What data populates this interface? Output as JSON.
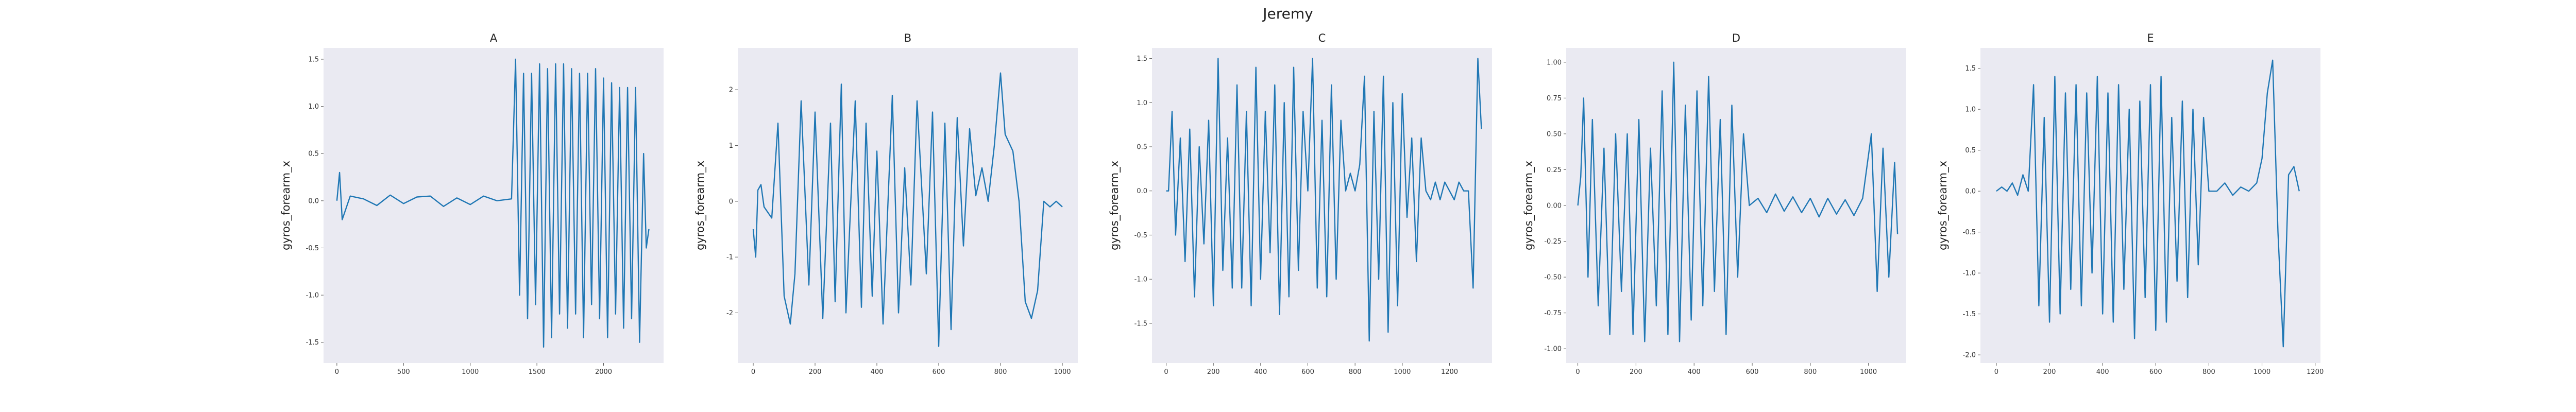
{
  "figure": {
    "title": "Jeremy"
  },
  "style": {
    "plot_background": "#eaeaf2",
    "line_color": "#1f77b4",
    "text_color": "#222222"
  },
  "chart_data": [
    {
      "type": "line",
      "title": "A",
      "xlabel": "",
      "ylabel": "gyros_forearm_x",
      "grid": false,
      "legend": "none",
      "xlim": [
        -100,
        2450
      ],
      "ylim": [
        -1.72,
        1.62
      ],
      "xticks": [
        0,
        500,
        1000,
        1500,
        2000
      ],
      "xtick_labels": [
        "0",
        "500",
        "1000",
        "1500",
        "2000"
      ],
      "yticks": [
        -1.5,
        -1.0,
        -0.5,
        0.0,
        0.5,
        1.0,
        1.5
      ],
      "ytick_labels": [
        "-1.5",
        "-1.0",
        "-0.5",
        "0.0",
        "0.5",
        "1.0",
        "1.5"
      ],
      "series": [
        {
          "x": [
            0,
            20,
            40,
            100,
            200,
            300,
            400,
            500,
            600,
            700,
            800,
            900,
            1000,
            1100,
            1200,
            1310,
            1340,
            1370,
            1400,
            1430,
            1460,
            1490,
            1520,
            1550,
            1580,
            1610,
            1640,
            1670,
            1700,
            1730,
            1760,
            1790,
            1820,
            1850,
            1880,
            1910,
            1940,
            1970,
            2000,
            2030,
            2060,
            2090,
            2120,
            2150,
            2180,
            2210,
            2240,
            2270,
            2300,
            2320,
            2340
          ],
          "y": [
            0.0,
            0.3,
            -0.2,
            0.05,
            0.02,
            -0.05,
            0.06,
            -0.03,
            0.04,
            0.05,
            -0.06,
            0.03,
            -0.04,
            0.05,
            0.0,
            0.02,
            1.5,
            -1.0,
            1.35,
            -1.25,
            1.35,
            -1.1,
            1.45,
            -1.55,
            1.4,
            -1.45,
            1.45,
            -1.2,
            1.45,
            -1.35,
            1.4,
            -1.2,
            1.35,
            -1.45,
            1.35,
            -1.1,
            1.4,
            -1.25,
            1.3,
            -1.45,
            1.25,
            -1.2,
            1.2,
            -1.35,
            1.2,
            -1.25,
            1.2,
            -1.5,
            0.5,
            -0.5,
            -0.3
          ]
        }
      ]
    },
    {
      "type": "line",
      "title": "B",
      "xlabel": "",
      "ylabel": "gyros_forearm_x",
      "grid": false,
      "legend": "none",
      "xlim": [
        -50,
        1050
      ],
      "ylim": [
        -2.9,
        2.75
      ],
      "xticks": [
        0,
        200,
        400,
        600,
        800,
        1000
      ],
      "xtick_labels": [
        "0",
        "200",
        "400",
        "600",
        "800",
        "1000"
      ],
      "yticks": [
        -2,
        -1,
        0,
        1,
        2
      ],
      "ytick_labels": [
        "-2",
        "-1",
        "0",
        "1",
        "2"
      ],
      "series": [
        {
          "x": [
            0,
            8,
            15,
            25,
            35,
            60,
            80,
            100,
            120,
            135,
            155,
            180,
            200,
            225,
            250,
            265,
            285,
            300,
            330,
            350,
            365,
            385,
            400,
            420,
            450,
            470,
            490,
            510,
            530,
            560,
            580,
            600,
            620,
            640,
            660,
            680,
            700,
            720,
            740,
            760,
            780,
            800,
            815,
            840,
            860,
            880,
            900,
            920,
            940,
            960,
            980,
            1000
          ],
          "y": [
            -0.5,
            -1.0,
            0.2,
            0.3,
            -0.1,
            -0.3,
            1.4,
            -1.7,
            -2.2,
            -1.3,
            1.8,
            -1.5,
            1.6,
            -2.1,
            1.4,
            -1.8,
            2.1,
            -2.0,
            1.8,
            -1.9,
            1.4,
            -1.7,
            0.9,
            -2.2,
            1.9,
            -2.0,
            0.6,
            -1.5,
            1.8,
            -1.3,
            1.6,
            -2.6,
            1.4,
            -2.3,
            1.5,
            -0.8,
            1.3,
            0.1,
            0.6,
            0.0,
            1.0,
            2.3,
            1.2,
            0.9,
            0.0,
            -1.8,
            -2.1,
            -1.6,
            0.0,
            -0.1,
            0.0,
            -0.1
          ]
        }
      ]
    },
    {
      "type": "line",
      "title": "C",
      "xlabel": "",
      "ylabel": "gyros_forearm_x",
      "grid": false,
      "legend": "none",
      "xlim": [
        -60,
        1380
      ],
      "ylim": [
        -1.95,
        1.62
      ],
      "xticks": [
        0,
        200,
        400,
        600,
        800,
        1000,
        1200
      ],
      "xtick_labels": [
        "0",
        "200",
        "400",
        "600",
        "800",
        "1000",
        "1200"
      ],
      "yticks": [
        -1.5,
        -1.0,
        -0.5,
        0.0,
        0.5,
        1.0,
        1.5
      ],
      "ytick_labels": [
        "-1.5",
        "-1.0",
        "-0.5",
        "0.0",
        "0.5",
        "1.0",
        "1.5"
      ],
      "series": [
        {
          "x": [
            0,
            10,
            25,
            40,
            60,
            80,
            100,
            120,
            140,
            160,
            180,
            200,
            220,
            240,
            260,
            280,
            300,
            320,
            340,
            360,
            380,
            400,
            420,
            440,
            460,
            480,
            500,
            520,
            540,
            560,
            580,
            600,
            620,
            640,
            660,
            680,
            700,
            720,
            740,
            760,
            780,
            800,
            820,
            840,
            860,
            880,
            900,
            920,
            940,
            960,
            980,
            1000,
            1020,
            1040,
            1060,
            1080,
            1100,
            1120,
            1140,
            1160,
            1180,
            1200,
            1220,
            1240,
            1260,
            1280,
            1300,
            1320,
            1335
          ],
          "y": [
            0.0,
            0.0,
            0.9,
            -0.5,
            0.6,
            -0.8,
            0.7,
            -1.2,
            0.5,
            -0.6,
            0.8,
            -1.3,
            1.5,
            -0.9,
            0.6,
            -1.1,
            1.2,
            -1.1,
            0.9,
            -1.3,
            1.4,
            -1.0,
            0.9,
            -0.7,
            1.2,
            -1.4,
            1.0,
            -1.2,
            1.4,
            -0.9,
            0.9,
            0.0,
            1.5,
            -1.1,
            0.8,
            -1.2,
            1.2,
            -1.0,
            0.8,
            0.0,
            0.2,
            0.0,
            0.3,
            1.3,
            -1.7,
            0.9,
            -1.0,
            1.3,
            -1.6,
            1.0,
            -1.3,
            1.1,
            -0.3,
            0.6,
            -0.8,
            0.6,
            0.0,
            -0.1,
            0.1,
            -0.1,
            0.1,
            0.0,
            -0.1,
            0.1,
            0.0,
            0.0,
            -1.1,
            1.5,
            0.7
          ]
        }
      ]
    },
    {
      "type": "line",
      "title": "D",
      "xlabel": "",
      "ylabel": "gyros_forearm_x",
      "grid": false,
      "legend": "none",
      "xlim": [
        -40,
        1130
      ],
      "ylim": [
        -1.1,
        1.1
      ],
      "xticks": [
        0,
        200,
        400,
        600,
        800,
        1000
      ],
      "xtick_labels": [
        "0",
        "200",
        "400",
        "600",
        "800",
        "1000"
      ],
      "yticks": [
        -1.0,
        -0.75,
        -0.5,
        -0.25,
        0.0,
        0.25,
        0.5,
        0.75,
        1.0
      ],
      "ytick_labels": [
        "-1.00",
        "-0.75",
        "-0.50",
        "-0.25",
        "0.00",
        "0.25",
        "0.50",
        "0.75",
        "1.00"
      ],
      "series": [
        {
          "x": [
            0,
            10,
            20,
            35,
            50,
            70,
            90,
            110,
            130,
            150,
            170,
            190,
            210,
            230,
            250,
            270,
            290,
            310,
            330,
            350,
            370,
            390,
            410,
            430,
            450,
            470,
            490,
            510,
            530,
            550,
            570,
            590,
            620,
            650,
            680,
            710,
            740,
            770,
            800,
            830,
            860,
            890,
            920,
            950,
            980,
            1010,
            1030,
            1050,
            1070,
            1090,
            1100
          ],
          "y": [
            0.0,
            0.2,
            0.75,
            -0.5,
            0.6,
            -0.7,
            0.4,
            -0.9,
            0.5,
            -0.6,
            0.5,
            -0.9,
            0.6,
            -0.95,
            0.4,
            -0.7,
            0.8,
            -0.9,
            1.0,
            -0.95,
            0.7,
            -0.8,
            0.8,
            -0.7,
            0.9,
            -0.6,
            0.6,
            -0.9,
            0.7,
            -0.5,
            0.5,
            0.0,
            0.05,
            -0.05,
            0.08,
            -0.04,
            0.06,
            -0.05,
            0.05,
            -0.08,
            0.05,
            -0.06,
            0.04,
            -0.07,
            0.05,
            0.5,
            -0.6,
            0.4,
            -0.5,
            0.3,
            -0.2
          ]
        }
      ]
    },
    {
      "type": "line",
      "title": "E",
      "xlabel": "",
      "ylabel": "gyros_forearm_x",
      "grid": false,
      "legend": "none",
      "xlim": [
        -60,
        1220
      ],
      "ylim": [
        -2.1,
        1.75
      ],
      "xticks": [
        0,
        200,
        400,
        600,
        800,
        1000,
        1200
      ],
      "xtick_labels": [
        "0",
        "200",
        "400",
        "600",
        "800",
        "1000",
        "1200"
      ],
      "yticks": [
        -2.0,
        -1.5,
        -1.0,
        -0.5,
        0.0,
        0.5,
        1.0,
        1.5
      ],
      "ytick_labels": [
        "-2.0",
        "-1.5",
        "-1.0",
        "-0.5",
        "0.0",
        "0.5",
        "1.0",
        "1.5"
      ],
      "series": [
        {
          "x": [
            0,
            20,
            40,
            60,
            80,
            100,
            120,
            140,
            160,
            180,
            200,
            220,
            240,
            260,
            280,
            300,
            320,
            340,
            360,
            380,
            400,
            420,
            440,
            460,
            480,
            500,
            520,
            540,
            560,
            580,
            600,
            620,
            640,
            660,
            680,
            700,
            720,
            740,
            760,
            780,
            800,
            830,
            860,
            890,
            920,
            950,
            980,
            1000,
            1020,
            1040,
            1060,
            1080,
            1100,
            1120,
            1140
          ],
          "y": [
            0.0,
            0.05,
            0.0,
            0.1,
            -0.05,
            0.2,
            0.0,
            1.3,
            -1.4,
            0.9,
            -1.6,
            1.4,
            -1.5,
            1.2,
            -1.2,
            1.3,
            -1.4,
            1.2,
            -1.0,
            1.4,
            -1.5,
            1.2,
            -1.6,
            1.3,
            -1.2,
            1.0,
            -1.8,
            1.1,
            -1.3,
            1.3,
            -1.7,
            1.4,
            -1.6,
            0.9,
            -1.1,
            1.1,
            -1.3,
            1.0,
            -0.9,
            0.9,
            0.0,
            0.0,
            0.1,
            -0.05,
            0.05,
            0.0,
            0.1,
            0.4,
            1.2,
            1.6,
            -0.5,
            -1.9,
            0.2,
            0.3,
            0.0
          ]
        }
      ]
    }
  ]
}
